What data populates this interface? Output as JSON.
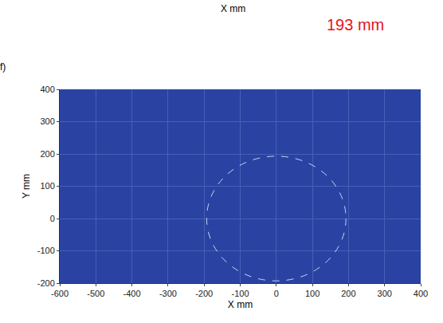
{
  "chart_data": {
    "type": "image",
    "panel_label": "f)",
    "xlabel": "X mm",
    "ylabel": "Y mm",
    "xlim": [
      -600,
      400
    ],
    "ylim": [
      -200,
      400
    ],
    "xticks": [
      -600,
      -500,
      -400,
      -300,
      -200,
      -100,
      0,
      100,
      200,
      300,
      400
    ],
    "yticks": [
      -200,
      -100,
      0,
      100,
      200,
      300,
      400
    ],
    "grid": true,
    "color": "#2a43a3",
    "circle": {
      "x": 0,
      "y": 0,
      "radius": 193,
      "line_style": "dashed"
    },
    "annotations": [
      {
        "text": "193 mm",
        "color": "#e8121b"
      },
      {
        "text": "X mm",
        "color": "#000000"
      }
    ]
  }
}
